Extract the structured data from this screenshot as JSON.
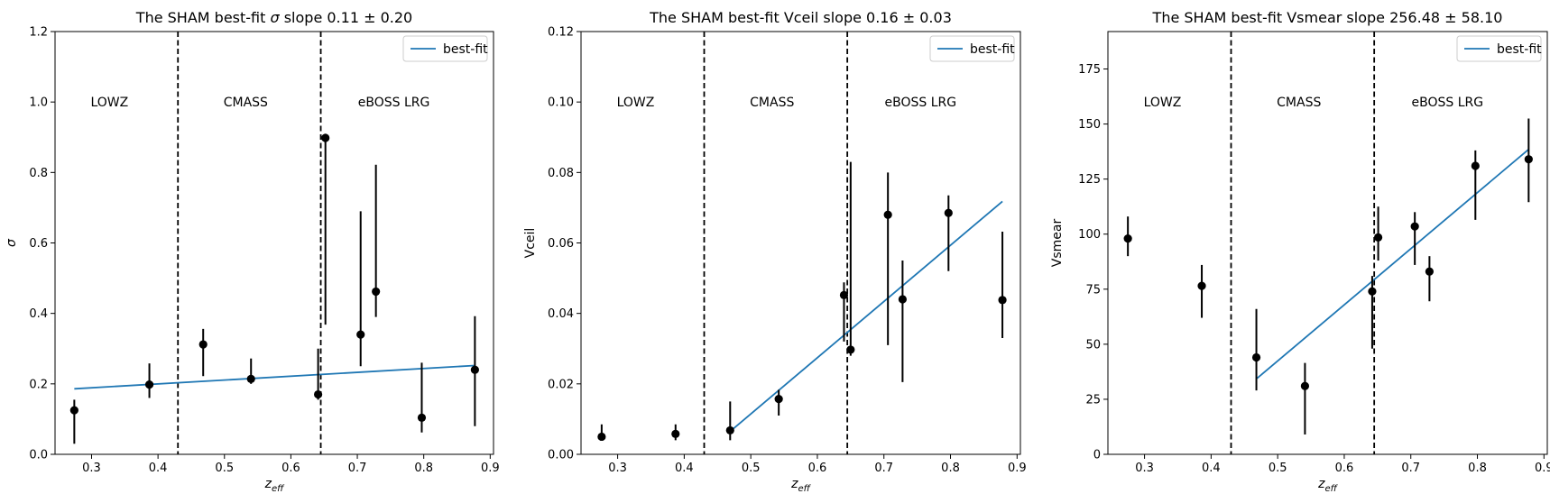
{
  "chart_data": [
    {
      "type": "scatter",
      "title_prefix": "The SHAM best-fit ",
      "title_param": "σ",
      "title_suffix": " slope 0.11 ± 0.20",
      "xlabel_main": "z",
      "xlabel_sub": "eff",
      "ylabel": "σ",
      "xlim": [
        0.245,
        0.905
      ],
      "ylim": [
        0,
        1.2
      ],
      "xticks": [
        0.3,
        0.4,
        0.5,
        0.6,
        0.7,
        0.8,
        0.9
      ],
      "xtick_labels": [
        "0.3",
        "0.4",
        "0.5",
        "0.6",
        "0.7",
        "0.8",
        "0.9"
      ],
      "yticks": [
        0,
        0.2,
        0.4,
        0.6,
        0.8,
        1.0,
        1.2
      ],
      "ytick_labels": [
        "0.0",
        "0.2",
        "0.4",
        "0.6",
        "0.8",
        "1.0",
        "1.2"
      ],
      "vlines": [
        0.43,
        0.645
      ],
      "region_labels": [
        {
          "text": "LOWZ",
          "x": 0.327,
          "y": 1.0
        },
        {
          "text": "CMASS",
          "x": 0.532,
          "y": 1.0
        },
        {
          "text": "eBOSS LRG",
          "x": 0.755,
          "y": 1.0
        }
      ],
      "legend": {
        "label": "best-fit",
        "placement": "top-right"
      },
      "points": [
        {
          "x": 0.274,
          "y": 0.125,
          "lo": 0.03,
          "hi": 0.155
        },
        {
          "x": 0.387,
          "y": 0.198,
          "lo": 0.16,
          "hi": 0.258
        },
        {
          "x": 0.468,
          "y": 0.312,
          "lo": 0.222,
          "hi": 0.356
        },
        {
          "x": 0.54,
          "y": 0.214,
          "lo": 0.2,
          "hi": 0.272
        },
        {
          "x": 0.641,
          "y": 0.17,
          "lo": 0.155,
          "hi": 0.3
        },
        {
          "x": 0.652,
          "y": 0.898,
          "lo": 0.368,
          "hi": 0.91
        },
        {
          "x": 0.705,
          "y": 0.34,
          "lo": 0.25,
          "hi": 0.69
        },
        {
          "x": 0.728,
          "y": 0.462,
          "lo": 0.39,
          "hi": 0.822
        },
        {
          "x": 0.797,
          "y": 0.104,
          "lo": 0.062,
          "hi": 0.26
        },
        {
          "x": 0.877,
          "y": 0.24,
          "lo": 0.08,
          "hi": 0.392
        }
      ],
      "fit_line": {
        "x": [
          0.274,
          0.877
        ],
        "y": [
          0.186,
          0.252
        ]
      }
    },
    {
      "type": "scatter",
      "title_prefix": "The SHAM best-fit ",
      "title_param": "Vceil",
      "title_suffix": " slope 0.16 ± 0.03",
      "xlabel_main": "z",
      "xlabel_sub": "eff",
      "ylabel": "Vceil",
      "xlim": [
        0.245,
        0.905
      ],
      "ylim": [
        0,
        0.12
      ],
      "xticks": [
        0.3,
        0.4,
        0.5,
        0.6,
        0.7,
        0.8,
        0.9
      ],
      "xtick_labels": [
        "0.3",
        "0.4",
        "0.5",
        "0.6",
        "0.7",
        "0.8",
        "0.9"
      ],
      "yticks": [
        0,
        0.02,
        0.04,
        0.06,
        0.08,
        0.1,
        0.12
      ],
      "ytick_labels": [
        "0.00",
        "0.02",
        "0.04",
        "0.06",
        "0.08",
        "0.10",
        "0.12"
      ],
      "vlines": [
        0.43,
        0.645
      ],
      "region_labels": [
        {
          "text": "LOWZ",
          "x": 0.327,
          "y": 0.1
        },
        {
          "text": "CMASS",
          "x": 0.532,
          "y": 0.1
        },
        {
          "text": "eBOSS LRG",
          "x": 0.755,
          "y": 0.1
        }
      ],
      "legend": {
        "label": "best-fit",
        "placement": "top-right"
      },
      "points": [
        {
          "x": 0.276,
          "y": 0.005,
          "lo": 0.004,
          "hi": 0.0085
        },
        {
          "x": 0.387,
          "y": 0.0058,
          "lo": 0.004,
          "hi": 0.0085
        },
        {
          "x": 0.469,
          "y": 0.0068,
          "lo": 0.004,
          "hi": 0.015
        },
        {
          "x": 0.542,
          "y": 0.0157,
          "lo": 0.011,
          "hi": 0.0183
        },
        {
          "x": 0.64,
          "y": 0.0452,
          "lo": 0.032,
          "hi": 0.0488
        },
        {
          "x": 0.65,
          "y": 0.0297,
          "lo": 0.028,
          "hi": 0.083
        },
        {
          "x": 0.706,
          "y": 0.068,
          "lo": 0.031,
          "hi": 0.08
        },
        {
          "x": 0.728,
          "y": 0.044,
          "lo": 0.0205,
          "hi": 0.055
        },
        {
          "x": 0.797,
          "y": 0.0685,
          "lo": 0.052,
          "hi": 0.0735
        },
        {
          "x": 0.878,
          "y": 0.0438,
          "lo": 0.033,
          "hi": 0.0632
        }
      ],
      "fit_line": {
        "x": [
          0.469,
          0.878
        ],
        "y": [
          0.0065,
          0.0718
        ]
      }
    },
    {
      "type": "scatter",
      "title_prefix": "The SHAM best-fit ",
      "title_param": "Vsmear",
      "title_suffix": " slope 256.48 ± 58.10",
      "xlabel_main": "z",
      "xlabel_sub": "eff",
      "ylabel": "Vsmear",
      "xlim": [
        0.245,
        0.905
      ],
      "ylim": [
        0,
        192
      ],
      "xticks": [
        0.3,
        0.4,
        0.5,
        0.6,
        0.7,
        0.8,
        0.9
      ],
      "xtick_labels": [
        "0.3",
        "0.4",
        "0.5",
        "0.6",
        "0.7",
        "0.8",
        "0.9"
      ],
      "yticks": [
        0,
        25,
        50,
        75,
        100,
        125,
        150,
        175
      ],
      "ytick_labels": [
        "0",
        "25",
        "50",
        "75",
        "100",
        "125",
        "150",
        "175"
      ],
      "vlines": [
        0.43,
        0.645
      ],
      "region_labels": [
        {
          "text": "LOWZ",
          "x": 0.327,
          "y": 160
        },
        {
          "text": "CMASS",
          "x": 0.532,
          "y": 160
        },
        {
          "text": "eBOSS LRG",
          "x": 0.755,
          "y": 160
        }
      ],
      "legend": {
        "label": "best-fit",
        "placement": "top-right"
      },
      "points": [
        {
          "x": 0.275,
          "y": 98,
          "lo": 90,
          "hi": 108
        },
        {
          "x": 0.386,
          "y": 76.5,
          "lo": 62,
          "hi": 86
        },
        {
          "x": 0.468,
          "y": 44,
          "lo": 29,
          "hi": 66
        },
        {
          "x": 0.541,
          "y": 31,
          "lo": 9,
          "hi": 41.5
        },
        {
          "x": 0.642,
          "y": 74,
          "lo": 48,
          "hi": 81
        },
        {
          "x": 0.651,
          "y": 98.5,
          "lo": 88,
          "hi": 112.5
        },
        {
          "x": 0.706,
          "y": 103.5,
          "lo": 86,
          "hi": 110
        },
        {
          "x": 0.728,
          "y": 83,
          "lo": 69.5,
          "hi": 90
        },
        {
          "x": 0.797,
          "y": 131,
          "lo": 106.5,
          "hi": 138
        },
        {
          "x": 0.877,
          "y": 134,
          "lo": 114.5,
          "hi": 152.5
        }
      ],
      "fit_line": {
        "x": [
          0.469,
          0.877
        ],
        "y": [
          34.5,
          138.5
        ]
      }
    }
  ],
  "colors": {
    "fit_line": "#1f77b4",
    "points": "#000000",
    "axes": "#000000",
    "legend_border": "#cccccc"
  }
}
